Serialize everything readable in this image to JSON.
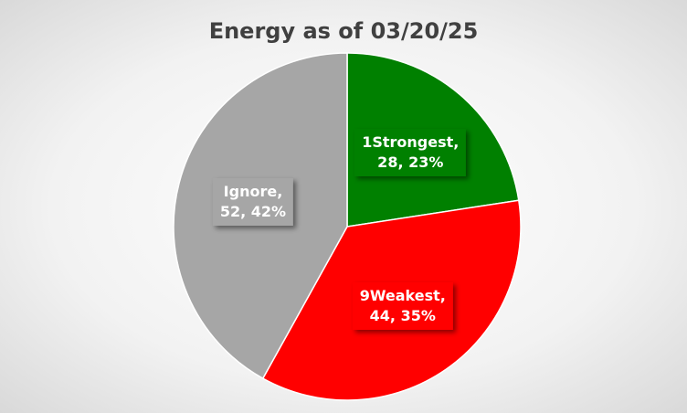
{
  "chart_data": {
    "type": "pie",
    "title": "Energy as of 03/20/25",
    "values": [
      28,
      44,
      52
    ],
    "value_labels": [
      "1Strongest,\n28, 23%",
      "9Weakest,\n44, 35%",
      "Ignore,\n52, 42%"
    ],
    "colors": [
      "#008000",
      "#ff0000",
      "#a6a6a6"
    ]
  }
}
